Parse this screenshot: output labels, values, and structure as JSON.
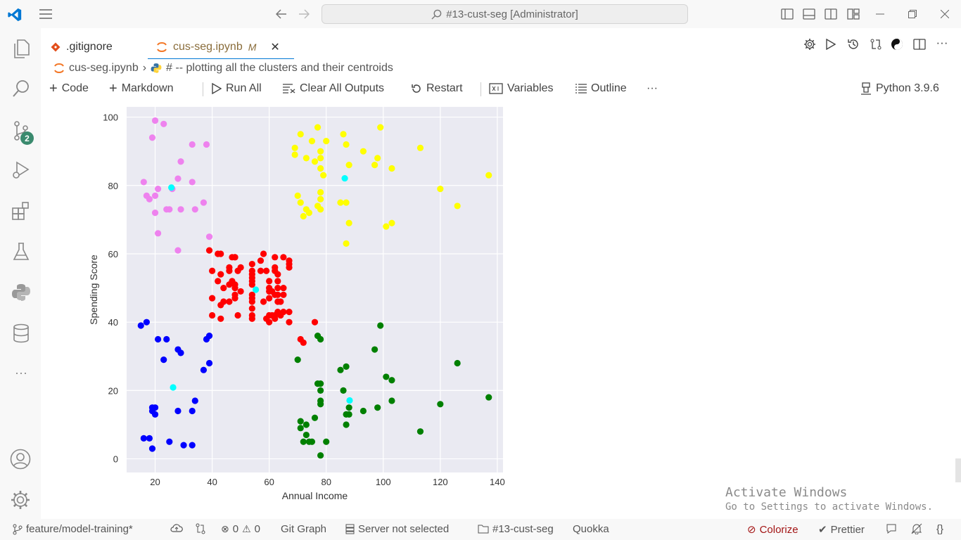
{
  "window": {
    "search_text": "#13-cust-seg [Administrator]"
  },
  "tabs": [
    {
      "label": ".gitignore",
      "active": false
    },
    {
      "label": "cus-seg.ipynb",
      "badge": "M",
      "active": true
    }
  ],
  "breadcrumb": {
    "file": "cus-seg.ipynb",
    "cell": "# -- plotting all the clusters and their centroids"
  },
  "toolbar": {
    "code": "Code",
    "markdown": "Markdown",
    "run_all": "Run All",
    "clear_outputs": "Clear All Outputs",
    "restart": "Restart",
    "variables": "Variables",
    "outline": "Outline",
    "more": "···",
    "kernel": "Python 3.9.6"
  },
  "activity": {
    "scm_badge": "2"
  },
  "status": {
    "branch": "feature/model-training*",
    "errors": "0",
    "warnings": "0",
    "git_graph": "Git Graph",
    "server": "Server not selected",
    "folder": "#13-cust-seg",
    "quokka": "Quokka",
    "colorize": "Colorize",
    "prettier": "Prettier"
  },
  "watermark": {
    "line1": "Activate Windows",
    "line2": "Go to Settings to activate Windows."
  },
  "chart_data": {
    "type": "scatter",
    "xlabel": "Annual Income",
    "ylabel": "Spending Score",
    "xlim": [
      10,
      142
    ],
    "ylim": [
      -4,
      103
    ],
    "xticks": [
      20,
      40,
      60,
      80,
      100,
      120,
      140
    ],
    "yticks": [
      0,
      20,
      40,
      60,
      80,
      100
    ],
    "grid": true,
    "series": [
      {
        "color": "#ee82ee",
        "points": [
          [
            16,
            81
          ],
          [
            17,
            77
          ],
          [
            18,
            76
          ],
          [
            19,
            94
          ],
          [
            20,
            99
          ],
          [
            20,
            72
          ],
          [
            20,
            77
          ],
          [
            21,
            66
          ],
          [
            23,
            98
          ],
          [
            24,
            73
          ],
          [
            25,
            73
          ],
          [
            26,
            79
          ],
          [
            28,
            82
          ],
          [
            28,
            61
          ],
          [
            29,
            87
          ],
          [
            29,
            73
          ],
          [
            33,
            92
          ],
          [
            33,
            81
          ],
          [
            34,
            73
          ],
          [
            37,
            75
          ],
          [
            38,
            92
          ],
          [
            39,
            65
          ],
          [
            21,
            79
          ]
        ]
      },
      {
        "color": "#ffff00",
        "points": [
          [
            69,
            91
          ],
          [
            70,
            77
          ],
          [
            71,
            95
          ],
          [
            71,
            75
          ],
          [
            72,
            71
          ],
          [
            73,
            73
          ],
          [
            73,
            88
          ],
          [
            74,
            72
          ],
          [
            75,
            93
          ],
          [
            76,
            87
          ],
          [
            77,
            97
          ],
          [
            77,
            74
          ],
          [
            78,
            90
          ],
          [
            78,
            88
          ],
          [
            78,
            76
          ],
          [
            78,
            78
          ],
          [
            78,
            73
          ],
          [
            79,
            83
          ],
          [
            80,
            93
          ],
          [
            85,
            75
          ],
          [
            86,
            95
          ],
          [
            87,
            75
          ],
          [
            87,
            63
          ],
          [
            87,
            92
          ],
          [
            88,
            86
          ],
          [
            88,
            69
          ],
          [
            93,
            90
          ],
          [
            97,
            86
          ],
          [
            98,
            88
          ],
          [
            99,
            97
          ],
          [
            101,
            68
          ],
          [
            103,
            69
          ],
          [
            103,
            85
          ],
          [
            113,
            91
          ],
          [
            120,
            79
          ],
          [
            126,
            74
          ],
          [
            137,
            83
          ],
          [
            69,
            89
          ],
          [
            78,
            85
          ]
        ]
      },
      {
        "color": "#ff0000",
        "points": [
          [
            39,
            61
          ],
          [
            40,
            55
          ],
          [
            40,
            47
          ],
          [
            40,
            42
          ],
          [
            42,
            52
          ],
          [
            42,
            60
          ],
          [
            43,
            54
          ],
          [
            43,
            60
          ],
          [
            43,
            45
          ],
          [
            43,
            41
          ],
          [
            44,
            50
          ],
          [
            44,
            46
          ],
          [
            46,
            51
          ],
          [
            46,
            46
          ],
          [
            46,
            56
          ],
          [
            46,
            55
          ],
          [
            47,
            52
          ],
          [
            47,
            59
          ],
          [
            48,
            51
          ],
          [
            48,
            59
          ],
          [
            48,
            50
          ],
          [
            48,
            48
          ],
          [
            48,
            59
          ],
          [
            48,
            47
          ],
          [
            49,
            55
          ],
          [
            49,
            42
          ],
          [
            50,
            49
          ],
          [
            50,
            56
          ],
          [
            54,
            47
          ],
          [
            54,
            54
          ],
          [
            54,
            53
          ],
          [
            54,
            48
          ],
          [
            54,
            52
          ],
          [
            54,
            42
          ],
          [
            54,
            51
          ],
          [
            54,
            55
          ],
          [
            54,
            41
          ],
          [
            54,
            44
          ],
          [
            54,
            57
          ],
          [
            54,
            46
          ],
          [
            57,
            58
          ],
          [
            57,
            55
          ],
          [
            58,
            60
          ],
          [
            58,
            46
          ],
          [
            59,
            55
          ],
          [
            59,
            41
          ],
          [
            60,
            49
          ],
          [
            60,
            40
          ],
          [
            60,
            42
          ],
          [
            60,
            52
          ],
          [
            60,
            47
          ],
          [
            60,
            50
          ],
          [
            61,
            42
          ],
          [
            61,
            49
          ],
          [
            62,
            41
          ],
          [
            62,
            48
          ],
          [
            62,
            59
          ],
          [
            62,
            55
          ],
          [
            62,
            56
          ],
          [
            62,
            42
          ],
          [
            63,
            50
          ],
          [
            63,
            46
          ],
          [
            63,
            43
          ],
          [
            63,
            48
          ],
          [
            63,
            52
          ],
          [
            63,
            54
          ],
          [
            64,
            42
          ],
          [
            64,
            46
          ],
          [
            65,
            48
          ],
          [
            65,
            50
          ],
          [
            65,
            43
          ],
          [
            65,
            59
          ],
          [
            67,
            43
          ],
          [
            67,
            57
          ],
          [
            67,
            56
          ],
          [
            67,
            40
          ],
          [
            67,
            58
          ],
          [
            71,
            35
          ],
          [
            72,
            34
          ],
          [
            76,
            40
          ]
        ]
      },
      {
        "color": "#008000",
        "points": [
          [
            70,
            29
          ],
          [
            71,
            11
          ],
          [
            71,
            9
          ],
          [
            72,
            5
          ],
          [
            73,
            7
          ],
          [
            73,
            10
          ],
          [
            74,
            5
          ],
          [
            75,
            5
          ],
          [
            76,
            12
          ],
          [
            77,
            36
          ],
          [
            77,
            22
          ],
          [
            78,
            1
          ],
          [
            78,
            16
          ],
          [
            78,
            35
          ],
          [
            78,
            22
          ],
          [
            78,
            17
          ],
          [
            78,
            20
          ],
          [
            80,
            5
          ],
          [
            85,
            26
          ],
          [
            86,
            20
          ],
          [
            87,
            27
          ],
          [
            87,
            13
          ],
          [
            87,
            10
          ],
          [
            88,
            13
          ],
          [
            88,
            15
          ],
          [
            93,
            14
          ],
          [
            97,
            32
          ],
          [
            98,
            15
          ],
          [
            99,
            39
          ],
          [
            101,
            24
          ],
          [
            103,
            17
          ],
          [
            103,
            23
          ],
          [
            113,
            8
          ],
          [
            120,
            16
          ],
          [
            126,
            28
          ],
          [
            137,
            18
          ]
        ]
      },
      {
        "color": "#0000ff",
        "points": [
          [
            15,
            39
          ],
          [
            16,
            6
          ],
          [
            17,
            40
          ],
          [
            18,
            6
          ],
          [
            19,
            3
          ],
          [
            19,
            14
          ],
          [
            19,
            15
          ],
          [
            20,
            13
          ],
          [
            20,
            15
          ],
          [
            21,
            35
          ],
          [
            23,
            29
          ],
          [
            24,
            35
          ],
          [
            25,
            5
          ],
          [
            28,
            14
          ],
          [
            28,
            32
          ],
          [
            29,
            31
          ],
          [
            30,
            4
          ],
          [
            33,
            4
          ],
          [
            33,
            14
          ],
          [
            34,
            17
          ],
          [
            37,
            26
          ],
          [
            38,
            35
          ],
          [
            39,
            36
          ],
          [
            39,
            28
          ]
        ]
      },
      {
        "color": "#00ffff",
        "points": [
          [
            25.7,
            79.4
          ],
          [
            86.5,
            82.1
          ],
          [
            55.3,
            49.5
          ],
          [
            88.2,
            17.1
          ],
          [
            26.3,
            20.9
          ]
        ]
      }
    ]
  }
}
